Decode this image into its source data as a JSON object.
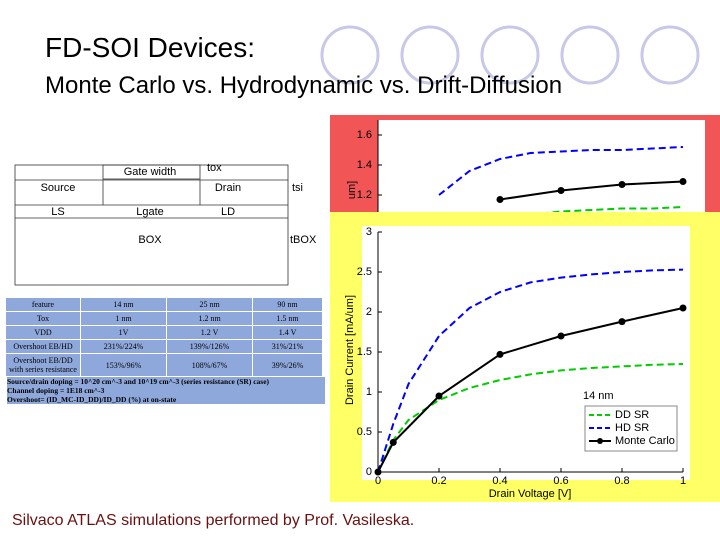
{
  "title": "FD-SOI Devices:",
  "subtitle": "Monte Carlo vs. Hydrodynamic vs. Drift-Diffusion",
  "footer": "Silvaco ATLAS simulations performed by Prof. Vasileska.",
  "diagram": {
    "labels": [
      "Gate width",
      "tox",
      "Source",
      "Drain",
      "tsi",
      "LS",
      "Lgate",
      "LD",
      "BOX",
      "tBOX"
    ]
  },
  "table": {
    "rows": [
      [
        "feature",
        "14 nm",
        "25 nm",
        "90 nm"
      ],
      [
        "Tox",
        "1 nm",
        "1.2 nm",
        "1.5 nm"
      ],
      [
        "VDD",
        "1V",
        "1.2 V",
        "1.4 V"
      ],
      [
        "Overshoot EB/HD",
        "231%/224%",
        "139%/126%",
        "31%/21%"
      ],
      [
        "Overshoot EB/DD with series resistance",
        "153%/96%",
        "108%/67%",
        "39%/26%"
      ]
    ],
    "notes": [
      "Source/drain doping = 10^20 cm^-3 and 10^19 cm^-3 (series resistance (SR) case)",
      "Channel doping = 1E18 cm^-3",
      "Overshoot= (ID_MC-ID_DD)/ID_DD (%) at on-state"
    ]
  },
  "chart_data": [
    {
      "type": "line",
      "y_label": "um]",
      "background": "#f25555",
      "xlim": [
        0,
        1
      ],
      "ylim": [
        1.0,
        1.7
      ],
      "yticks": [
        1.2,
        1.4,
        1.6
      ],
      "series": [
        {
          "color": "#0000ff",
          "dash": true,
          "marker": false,
          "x": [
            0.2,
            0.3,
            0.4,
            0.5,
            0.6,
            0.7,
            0.8,
            0.9,
            1
          ],
          "values": [
            1.2,
            1.36,
            1.44,
            1.48,
            1.49,
            1.5,
            1.5,
            1.51,
            1.52
          ]
        },
        {
          "color": "#00cc00",
          "dash": true,
          "marker": false,
          "x": [
            0.5,
            0.6,
            0.7,
            0.8,
            0.9,
            1
          ],
          "values": [
            1.07,
            1.09,
            1.1,
            1.11,
            1.11,
            1.12
          ]
        },
        {
          "color": "#000000",
          "dash": false,
          "marker": true,
          "x": [
            0.4,
            0.6,
            0.8,
            1
          ],
          "values": [
            1.17,
            1.23,
            1.27,
            1.29
          ]
        }
      ]
    },
    {
      "type": "line",
      "title": "14 nm",
      "x_label": "Drain Voltage [V]",
      "y_label": "Drain Current [mA/um]",
      "background": "#ffff66",
      "xlim": [
        0,
        1
      ],
      "xticks": [
        0,
        0.2,
        0.4,
        0.6,
        0.8,
        1
      ],
      "ylim": [
        0,
        3
      ],
      "yticks": [
        0,
        0.5,
        1,
        1.5,
        2,
        2.5,
        3
      ],
      "legend": "lower right",
      "series": [
        {
          "name": "DD SR",
          "color": "#00cc00",
          "dash": true,
          "marker": false,
          "x": [
            0,
            0.05,
            0.1,
            0.2,
            0.3,
            0.4,
            0.5,
            0.6,
            0.7,
            0.8,
            0.9,
            1
          ],
          "values": [
            0,
            0.4,
            0.65,
            0.9,
            1.05,
            1.15,
            1.22,
            1.27,
            1.3,
            1.32,
            1.34,
            1.35
          ]
        },
        {
          "name": "HD SR",
          "color": "#0000ff",
          "dash": true,
          "marker": false,
          "x": [
            0,
            0.05,
            0.1,
            0.2,
            0.3,
            0.4,
            0.5,
            0.6,
            0.7,
            0.8,
            0.9,
            1
          ],
          "values": [
            0,
            0.6,
            1.1,
            1.7,
            2.05,
            2.25,
            2.37,
            2.43,
            2.47,
            2.5,
            2.52,
            2.53
          ]
        },
        {
          "name": "Monte Carlo",
          "color": "#000000",
          "dash": false,
          "marker": true,
          "x": [
            0,
            0.05,
            0.2,
            0.4,
            0.6,
            0.8,
            1
          ],
          "values": [
            0,
            0.37,
            0.95,
            1.47,
            1.7,
            1.88,
            2.05
          ]
        }
      ]
    }
  ]
}
